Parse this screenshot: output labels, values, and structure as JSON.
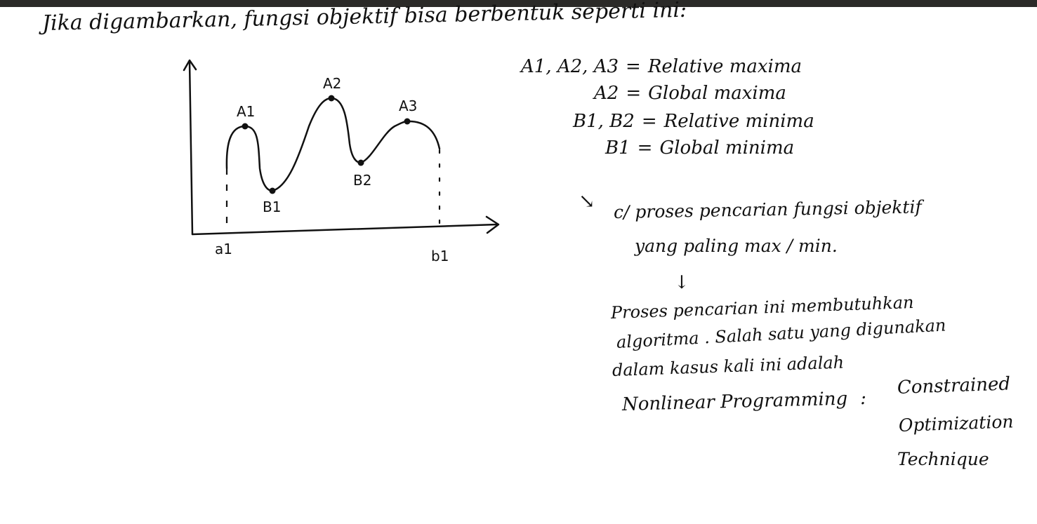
{
  "heading": "Jika digambarkan, fungsi objektif bisa berbentuk seperti ini:",
  "diagram": {
    "points": {
      "A1": "A1",
      "A2": "A2",
      "A3": "A3",
      "B1": "B1",
      "B2": "B2"
    },
    "axis_labels": {
      "a1": "a1",
      "b1": "b1"
    }
  },
  "legend": [
    {
      "lhs": "A1, A2, A3",
      "eq": "=",
      "rhs": "Relative maxima"
    },
    {
      "lhs": "A2",
      "eq": "=",
      "rhs": "Global maxima"
    },
    {
      "lhs": "B1, B2",
      "eq": "=",
      "rhs": "Relative minima"
    },
    {
      "lhs": "B1",
      "eq": "=",
      "rhs": "Global minima"
    }
  ],
  "notes": {
    "arrow": "↘",
    "line1": "c/ proses pencarian fungsi objektif",
    "line2": "yang paling max / min.",
    "down_arrow": "↓",
    "line3": "Proses pencarian ini membutuhkan",
    "line4": "algoritma . Salah satu yang digunakan",
    "line5": "dalam kasus kali ini adalah",
    "line6_left": "Nonlinear Programming",
    "line6_colon": ":",
    "line7": "Constrained",
    "line8": "Optimization",
    "line9": "Technique"
  }
}
